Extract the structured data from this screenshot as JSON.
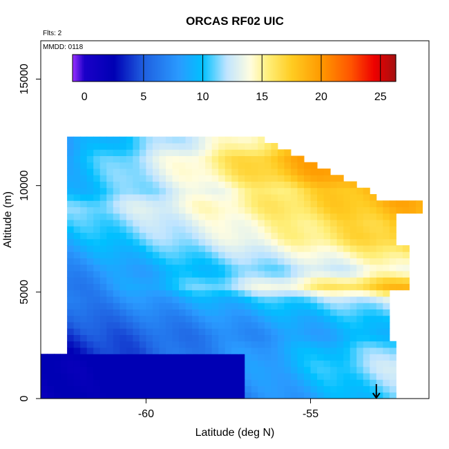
{
  "chart_data": {
    "type": "heatmap",
    "title": "ORCAS RF02 UIC",
    "xlabel": "Latitude (deg N)",
    "ylabel": "Altitude (m)",
    "xlim": [
      -63.2,
      -51.4
    ],
    "ylim": [
      0,
      16800
    ],
    "x_ticks": [
      -60,
      -55
    ],
    "y_ticks": [
      0,
      5000,
      10000,
      15000
    ],
    "annotations": {
      "flights": "Flts: 2",
      "date": "MMDD: 0118"
    },
    "colorbar": {
      "range": [
        -1,
        26.3
      ],
      "ticks": [
        0,
        5,
        10,
        15,
        20,
        25
      ],
      "stops": [
        {
          "v": -1,
          "c": "#9b30ff"
        },
        {
          "v": 0,
          "c": "#1a00c8"
        },
        {
          "v": 2.5,
          "c": "#0000b4"
        },
        {
          "v": 5,
          "c": "#1f5fe0"
        },
        {
          "v": 8,
          "c": "#2a9bff"
        },
        {
          "v": 10,
          "c": "#00c0ff"
        },
        {
          "v": 12,
          "c": "#bfe4ff"
        },
        {
          "v": 14,
          "c": "#fffde0"
        },
        {
          "v": 15.5,
          "c": "#ffef7a"
        },
        {
          "v": 17.5,
          "c": "#ffcc22"
        },
        {
          "v": 20,
          "c": "#ff9900"
        },
        {
          "v": 22.5,
          "c": "#ff5500"
        },
        {
          "v": 24.5,
          "c": "#ee0000"
        },
        {
          "v": 26.3,
          "c": "#a51111"
        }
      ]
    },
    "marker": {
      "lat": -53.0,
      "alt": 0,
      "symbol": "down-arrow"
    },
    "field_bands": [
      {
        "alt": 12000,
        "v_south": 8,
        "v_north": 21
      },
      {
        "alt": 11200,
        "v_south": 9,
        "v_north": 24
      },
      {
        "alt": 10500,
        "v_south": 9,
        "v_north": 23
      },
      {
        "alt": 9800,
        "v_south": 9,
        "v_north": 20
      },
      {
        "alt": 9000,
        "v_south": 11,
        "v_north": 19
      },
      {
        "alt": 8200,
        "v_south": 10,
        "v_north": 18
      },
      {
        "alt": 7500,
        "v_south": 9,
        "v_north": 18
      },
      {
        "alt": 6800,
        "v_south": 8,
        "v_north": 16
      },
      {
        "alt": 6000,
        "v_south": 7,
        "v_north": 14
      },
      {
        "alt": 5300,
        "v_south": 6,
        "v_north": 19
      },
      {
        "alt": 4600,
        "v_south": 6,
        "v_north": 13
      },
      {
        "alt": 3800,
        "v_south": 5,
        "v_north": 11
      },
      {
        "alt": 3000,
        "v_south": 4,
        "v_north": 10
      },
      {
        "alt": 2300,
        "v_south": 3,
        "v_north": 12
      },
      {
        "alt": 1500,
        "v_south": 2,
        "v_north": 13
      },
      {
        "alt": 700,
        "v_south": 2,
        "v_north": 12
      },
      {
        "alt": 0,
        "v_south": 2,
        "v_north": 11
      }
    ]
  }
}
